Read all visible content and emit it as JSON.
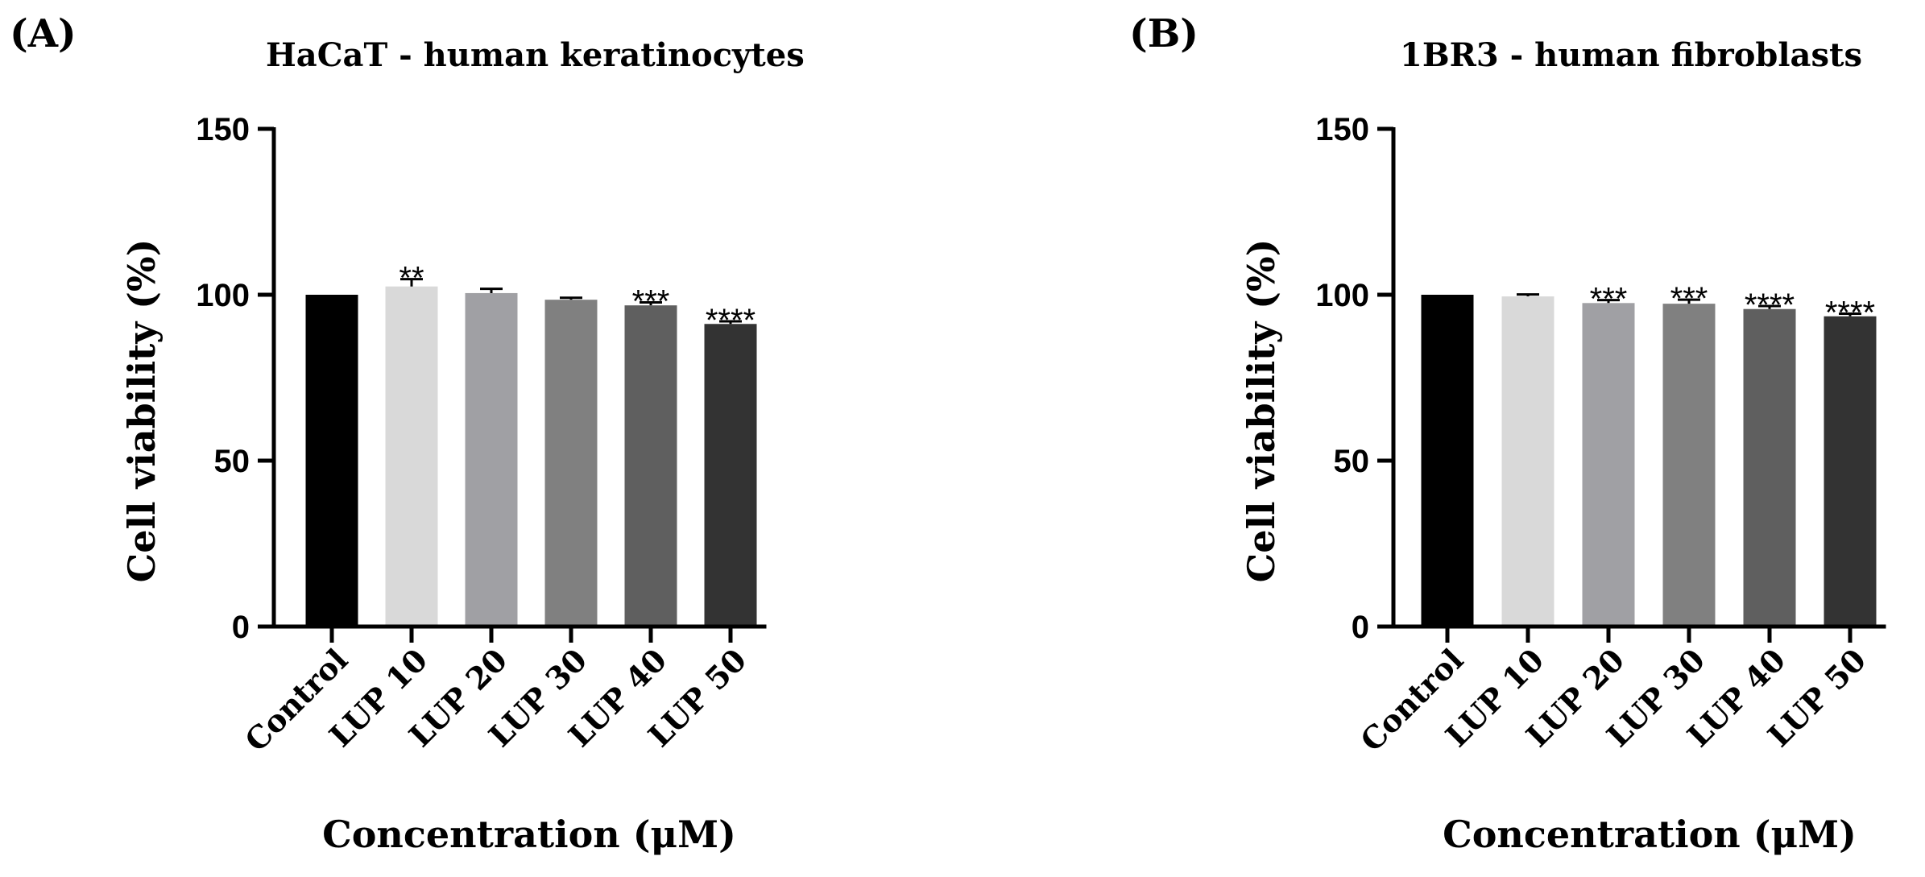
{
  "chart_data": [
    {
      "type": "bar",
      "panel": "(A)",
      "title": "HaCaT - human keratinocytes",
      "xlabel": "Concentration (μM)",
      "ylabel": "Cell viability (%)",
      "ylim": [
        0,
        150
      ],
      "yticks": [
        0,
        50,
        100,
        150
      ],
      "categories": [
        "Control",
        "LUP 10",
        "LUP 20",
        "LUP 30",
        "LUP 40",
        "LUP 50"
      ],
      "values": [
        100,
        102.5,
        100.5,
        98.5,
        96.8,
        91.2
      ],
      "errors": [
        0,
        2.2,
        1.3,
        0.6,
        0.9,
        0.8
      ],
      "significance": [
        "",
        "**",
        "",
        "",
        "***",
        "****"
      ],
      "colors": [
        "#000000",
        "#d9d9d9",
        "#a0a0a4",
        "#808080",
        "#5f5f5f",
        "#333333"
      ]
    },
    {
      "type": "bar",
      "panel": "(B)",
      "title": "1BR3 - human fibroblasts",
      "xlabel": "Concentration (μM)",
      "ylabel": "Cell viability (%)",
      "ylim": [
        0,
        150
      ],
      "yticks": [
        0,
        50,
        100,
        150
      ],
      "categories": [
        "Control",
        "LUP 10",
        "LUP 20",
        "LUP 30",
        "LUP 40",
        "LUP 50"
      ],
      "values": [
        100,
        99.5,
        97.5,
        97.3,
        95.7,
        93.5
      ],
      "errors": [
        0,
        0.6,
        0.9,
        1.2,
        0.9,
        0.8
      ],
      "significance": [
        "",
        "",
        "***",
        "***",
        "****",
        "****"
      ],
      "colors": [
        "#000000",
        "#d9d9d9",
        "#a0a0a4",
        "#808080",
        "#5f5f5f",
        "#333333"
      ]
    }
  ]
}
